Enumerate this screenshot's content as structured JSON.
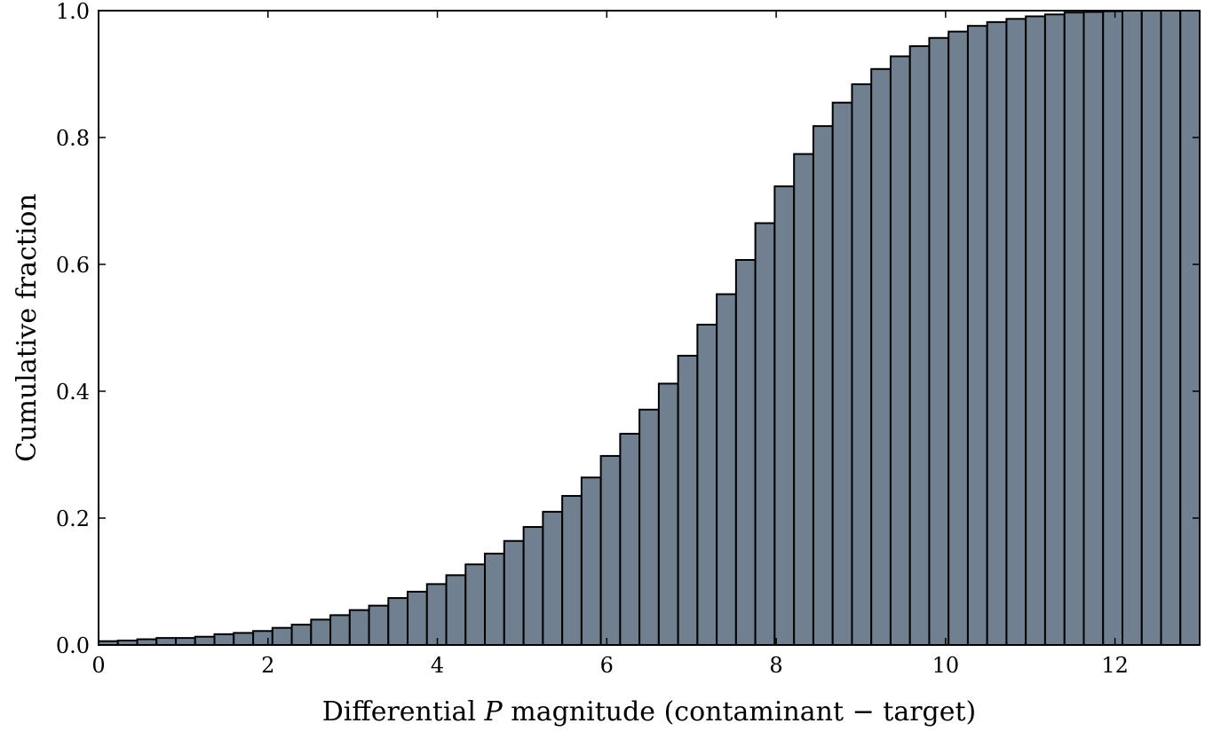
{
  "chart_data": {
    "type": "bar",
    "title": "",
    "xlabel_parts": [
      "Differential ",
      "P",
      " magnitude (contaminant − target)"
    ],
    "ylabel": "Cumulative fraction",
    "xlim": [
      0,
      13
    ],
    "ylim": [
      0,
      1.0
    ],
    "xticks": [
      0,
      2,
      4,
      6,
      8,
      10,
      12
    ],
    "xtick_labels": [
      "0",
      "2",
      "4",
      "6",
      "8",
      "10",
      "12"
    ],
    "yticks": [
      0.0,
      0.2,
      0.4,
      0.6,
      0.8,
      1.0
    ],
    "ytick_labels": [
      "0.0",
      "0.2",
      "0.4",
      "0.6",
      "0.8",
      "1.0"
    ],
    "grid": false,
    "bar_color": "#708090",
    "edge_color": "#000000",
    "bin_edges": [
      0.0,
      0.228,
      0.456,
      0.684,
      0.912,
      1.14,
      1.368,
      1.596,
      1.825,
      2.053,
      2.281,
      2.509,
      2.737,
      2.965,
      3.193,
      3.421,
      3.649,
      3.877,
      4.105,
      4.333,
      4.561,
      4.789,
      5.018,
      5.246,
      5.474,
      5.702,
      5.93,
      6.158,
      6.386,
      6.614,
      6.842,
      7.07,
      7.298,
      7.526,
      7.754,
      7.982,
      8.211,
      8.439,
      8.667,
      8.895,
      9.123,
      9.351,
      9.579,
      9.807,
      10.035,
      10.263,
      10.491,
      10.719,
      10.947,
      11.175,
      11.404,
      11.632,
      11.86,
      12.088,
      12.316,
      12.544,
      12.772,
      13.0
    ],
    "values": [
      0.006,
      0.007,
      0.009,
      0.011,
      0.011,
      0.013,
      0.017,
      0.019,
      0.022,
      0.027,
      0.032,
      0.04,
      0.047,
      0.055,
      0.062,
      0.074,
      0.084,
      0.096,
      0.11,
      0.127,
      0.144,
      0.164,
      0.186,
      0.21,
      0.235,
      0.264,
      0.298,
      0.333,
      0.371,
      0.412,
      0.456,
      0.505,
      0.553,
      0.607,
      0.665,
      0.723,
      0.774,
      0.818,
      0.855,
      0.884,
      0.908,
      0.928,
      0.944,
      0.957,
      0.967,
      0.976,
      0.982,
      0.987,
      0.991,
      0.994,
      0.997,
      0.998,
      0.999,
      1.0,
      1.0,
      1.0,
      1.0
    ]
  }
}
